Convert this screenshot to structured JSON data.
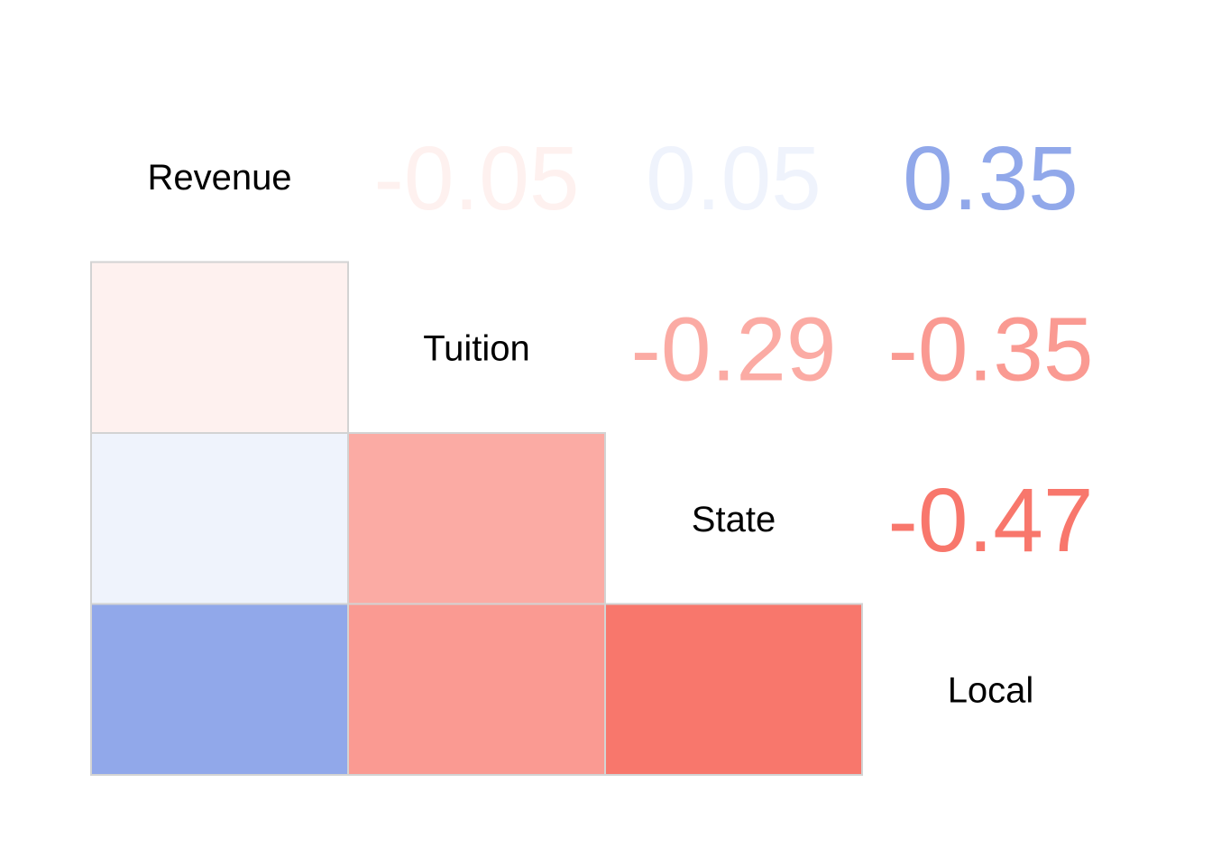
{
  "chart_data": {
    "type": "heatmap",
    "variables": [
      "Revenue",
      "Tuition",
      "State",
      "Local"
    ],
    "correlations": [
      {
        "row": "Tuition",
        "col": "Revenue",
        "value": -0.05,
        "label": "-0.05"
      },
      {
        "row": "State",
        "col": "Revenue",
        "value": 0.05,
        "label": "0.05"
      },
      {
        "row": "Local",
        "col": "Revenue",
        "value": 0.35,
        "label": "0.35"
      },
      {
        "row": "State",
        "col": "Tuition",
        "value": -0.29,
        "label": "-0.29"
      },
      {
        "row": "Local",
        "col": "Tuition",
        "value": -0.35,
        "label": "-0.35"
      },
      {
        "row": "Local",
        "col": "State",
        "value": -0.47,
        "label": "-0.47"
      }
    ],
    "colors": {
      "positive": "#6b8ae3",
      "negative": "#f8776c",
      "neutral": "#ffffff",
      "cell_border": "#d3d3d3"
    },
    "color_scale_max": 0.47
  }
}
